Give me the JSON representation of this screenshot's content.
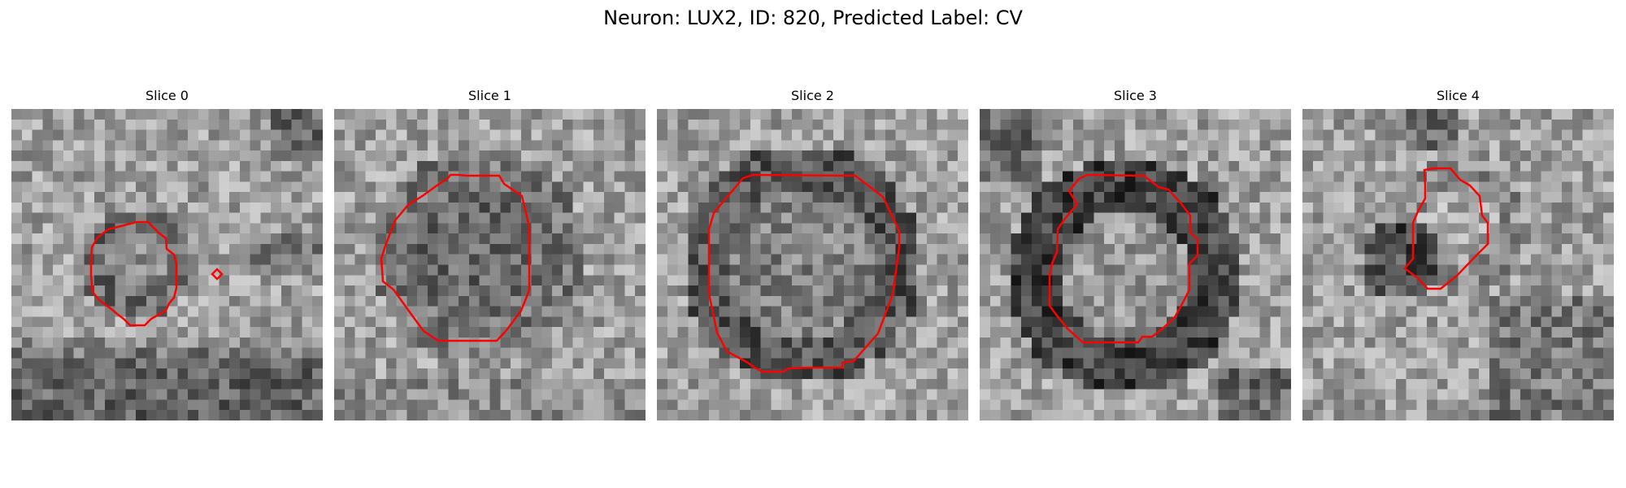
{
  "figure": {
    "title": "Neuron: LUX2, ID: 820, Predicted Label: CV"
  },
  "colors": {
    "contour": "#ff0000",
    "background": "#ffffff"
  },
  "panels": [
    {
      "title": "Slice 0",
      "blob": "small-ring",
      "has_extra_marker": true
    },
    {
      "title": "Slice 1",
      "blob": "dark-disc"
    },
    {
      "title": "Slice 2",
      "blob": "dark-ring"
    },
    {
      "title": "Slice 3",
      "blob": "dark-ring-strong"
    },
    {
      "title": "Slice 4",
      "blob": "small-offset"
    }
  ]
}
